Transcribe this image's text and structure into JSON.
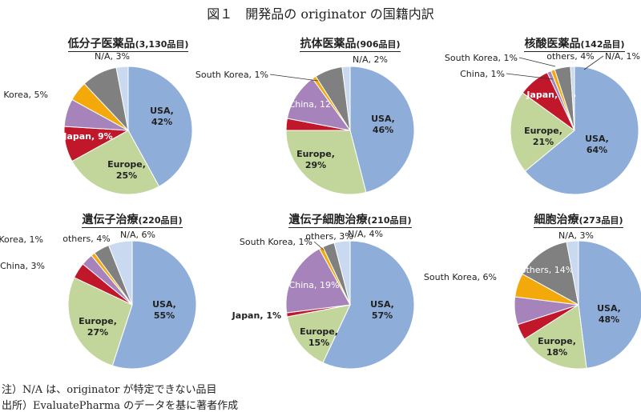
{
  "title": "図１　開発品の originator の国籍内訳",
  "notes": [
    "注）N/A は、originator が特定できない品目",
    "出所）EvaluatePharma のデータを基に著者作成"
  ],
  "colors": {
    "USA": "#8eadd9",
    "Europe": "#c2d69b",
    "Japan": "#c0172a",
    "China": "#a683ba",
    "South Korea": "#f4a90a",
    "others": "#808080",
    "N/A": "#c9daf0"
  },
  "chart_data": [
    {
      "type": "pie",
      "title": "低分子医薬品",
      "count": "(3,130品目)",
      "slices": [
        {
          "label": "USA",
          "value": 42
        },
        {
          "label": "Europe",
          "value": 25
        },
        {
          "label": "Japan",
          "value": 9
        },
        {
          "label": "China",
          "value": 7
        },
        {
          "label": "South Korea",
          "value": 5
        },
        {
          "label": "others",
          "value": 9
        },
        {
          "label": "N/A",
          "value": 3
        }
      ]
    },
    {
      "type": "pie",
      "title": "抗体医薬品",
      "count": "(906品目)",
      "slices": [
        {
          "label": "USA",
          "value": 46
        },
        {
          "label": "Europe",
          "value": 29
        },
        {
          "label": "Japan",
          "value": 3
        },
        {
          "label": "China",
          "value": 12
        },
        {
          "label": "South Korea",
          "value": 1
        },
        {
          "label": "others",
          "value": 7
        },
        {
          "label": "N/A",
          "value": 2
        }
      ]
    },
    {
      "type": "pie",
      "title": "核酸医薬品",
      "count": "(142品目)",
      "slices": [
        {
          "label": "USA",
          "value": 64
        },
        {
          "label": "Europe",
          "value": 21
        },
        {
          "label": "Japan",
          "value": 8
        },
        {
          "label": "China",
          "value": 1
        },
        {
          "label": "South Korea",
          "value": 1
        },
        {
          "label": "others",
          "value": 4
        },
        {
          "label": "N/A",
          "value": 1
        }
      ]
    },
    {
      "type": "pie",
      "title": "遺伝子治療",
      "count": "(220品目)",
      "slices": [
        {
          "label": "USA",
          "value": 55
        },
        {
          "label": "Europe",
          "value": 27
        },
        {
          "label": "Japan",
          "value": 4
        },
        {
          "label": "China",
          "value": 3
        },
        {
          "label": "South Korea",
          "value": 1
        },
        {
          "label": "others",
          "value": 4
        },
        {
          "label": "N/A",
          "value": 6
        }
      ]
    },
    {
      "type": "pie",
      "title": "遺伝子細胞治療",
      "count": "(210品目)",
      "slices": [
        {
          "label": "USA",
          "value": 57
        },
        {
          "label": "Europe",
          "value": 15
        },
        {
          "label": "Japan",
          "value": 1
        },
        {
          "label": "China",
          "value": 19
        },
        {
          "label": "South Korea",
          "value": 1
        },
        {
          "label": "others",
          "value": 3
        },
        {
          "label": "N/A",
          "value": 4
        }
      ]
    },
    {
      "type": "pie",
      "title": "細胞治療",
      "count": "(273品目)",
      "slices": [
        {
          "label": "USA",
          "value": 48
        },
        {
          "label": "Europe",
          "value": 18
        },
        {
          "label": "Japan",
          "value": 4
        },
        {
          "label": "China",
          "value": 7
        },
        {
          "label": "South Korea",
          "value": 6
        },
        {
          "label": "others",
          "value": 14
        },
        {
          "label": "N/A",
          "value": 3
        }
      ]
    }
  ]
}
